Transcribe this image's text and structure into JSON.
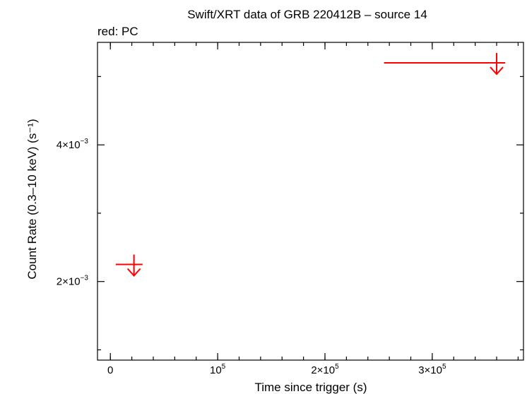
{
  "chart_data": {
    "type": "scatter",
    "title": "Swift/XRT data of GRB 220412B – source 14",
    "subtitle": "red: PC",
    "xlabel": "Time since trigger (s)",
    "ylabel": "Count Rate (0.3–10 keV) (s⁻¹)",
    "xlim": [
      -12000,
      385000
    ],
    "ylim": [
      0.00085,
      0.0055
    ],
    "x_ticks": [
      {
        "value": 0,
        "mantissa": "0",
        "exp": ""
      },
      {
        "value": 100000,
        "mantissa": "10",
        "exp": "5"
      },
      {
        "value": 200000,
        "mantissa": "2×10",
        "exp": "5"
      },
      {
        "value": 300000,
        "mantissa": "3×10",
        "exp": "5"
      }
    ],
    "y_ticks": [
      {
        "value": 0.002,
        "mantissa": "2×10",
        "exp": "−3"
      },
      {
        "value": 0.004,
        "mantissa": "4×10",
        "exp": "−3"
      }
    ],
    "y_minor": [
      0.001,
      0.003,
      0.005
    ],
    "x_minor_step": 20000,
    "series": [
      {
        "color": "#ff0000",
        "points": [
          {
            "x": 22000,
            "x_lo": 5000,
            "x_hi": 30000,
            "y": 0.00225,
            "upper_limit": true
          },
          {
            "x": 360000,
            "x_lo": 255000,
            "x_hi": 368000,
            "y": 0.0052,
            "upper_limit": true
          }
        ]
      }
    ]
  }
}
